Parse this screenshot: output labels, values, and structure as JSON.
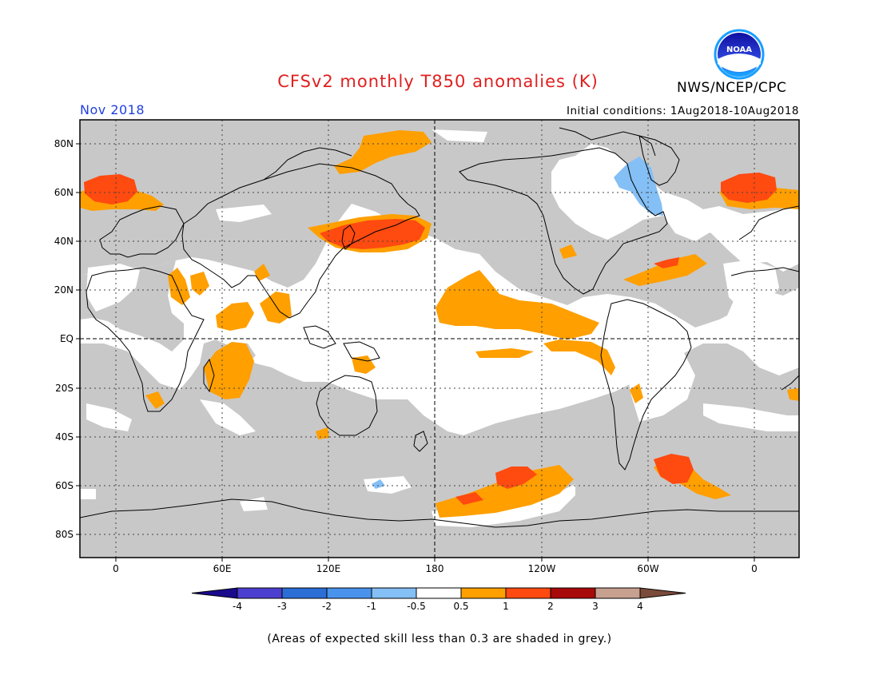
{
  "title": "CFSv2 monthly T850 anomalies (K)",
  "agency": "NWS/NCEP/CPC",
  "month": "Nov 2018",
  "initial_conditions": "Initial conditions: 1Aug2018-10Aug2018",
  "note": "(Areas of expected skill less than 0.3 are shaded in grey.)",
  "logo": {
    "icon": "noaa-logo-icon",
    "text": "NOAA"
  },
  "latitude_labels": [
    "80N",
    "60N",
    "40N",
    "20N",
    "EQ",
    "20S",
    "40S",
    "60S",
    "80S"
  ],
  "longitude_labels": [
    "0",
    "60E",
    "120E",
    "180",
    "120W",
    "60W",
    "0"
  ],
  "colorbar": {
    "labels": [
      "-4",
      "-3",
      "-2",
      "-1",
      "-0.5",
      "0.5",
      "1",
      "2",
      "3",
      "4"
    ],
    "colors": [
      "#1a0a8c",
      "#4b3fd0",
      "#2b6ed6",
      "#4a93ec",
      "#84bff5",
      "#ffffff",
      "#ff9f00",
      "#ff4a10",
      "#a80a0a",
      "#c8a090",
      "#7a4a3a"
    ]
  },
  "colors": {
    "skill_grey": "#c8c8c8",
    "ocean_white": "#ffffff",
    "warm_light": "#ff9f00",
    "warm_strong": "#ff4a10",
    "cool_light": "#84bff5",
    "title_red": "#e02020",
    "month_blue": "#2040e0"
  }
}
